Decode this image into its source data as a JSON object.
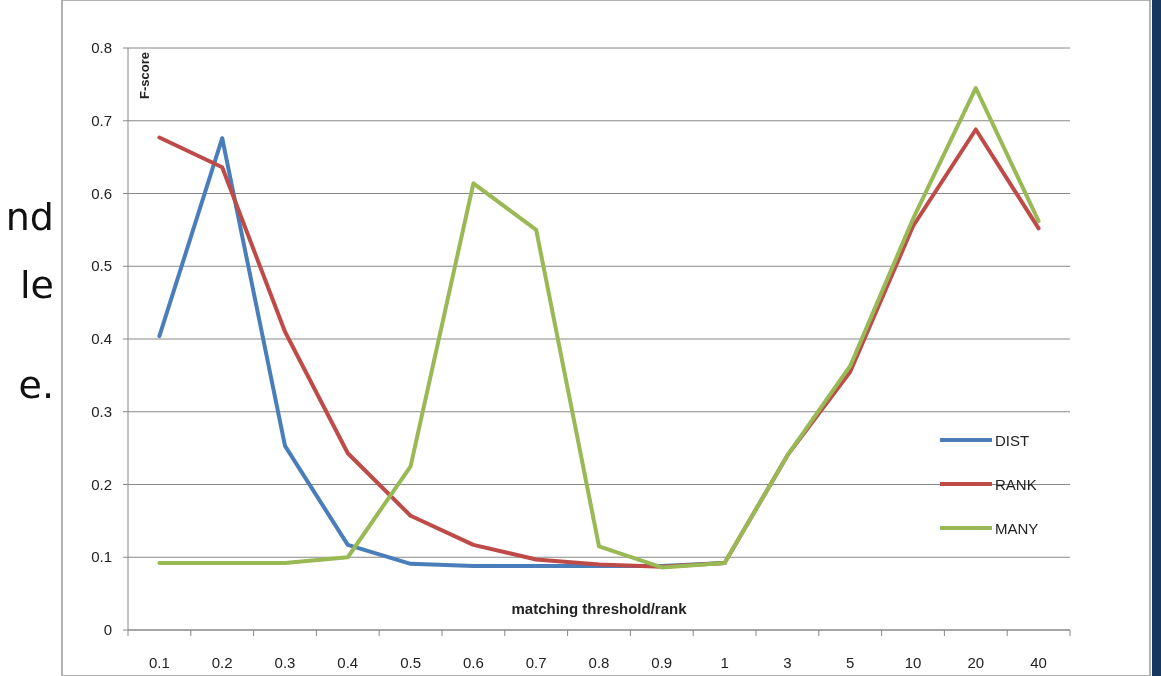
{
  "chart_data": {
    "type": "line",
    "ylabel": "F-score",
    "xlabel": "matching threshold/rank",
    "annotations": [
      "nd",
      "le",
      "e."
    ],
    "categories": [
      "0.1",
      "0.2",
      "0.3",
      "0.4",
      "0.5",
      "0.6",
      "0.7",
      "0.8",
      "0.9",
      "1",
      "3",
      "5",
      "10",
      "20",
      "40"
    ],
    "series": [
      {
        "name": "DIST",
        "color": "#4a7ebb",
        "values": [
          0.404,
          0.676,
          0.253,
          0.117,
          0.091,
          0.088,
          0.088,
          0.088,
          0.088,
          0.092,
          null,
          null,
          null,
          null,
          null
        ]
      },
      {
        "name": "RANK",
        "color": "#be4b48",
        "values": [
          0.677,
          0.636,
          0.41,
          0.243,
          0.157,
          0.117,
          0.097,
          0.09,
          0.087,
          0.092,
          0.24,
          0.355,
          0.555,
          0.688,
          0.552
        ]
      },
      {
        "name": "MANY",
        "color": "#98b954",
        "values": [
          0.092,
          0.092,
          0.092,
          0.1,
          0.225,
          0.614,
          0.55,
          0.115,
          0.086,
          0.092,
          0.24,
          0.363,
          0.565,
          0.745,
          0.562
        ]
      }
    ],
    "ylim": [
      0,
      0.8
    ],
    "yticks": [
      0,
      0.1,
      0.2,
      0.3,
      0.4,
      0.5,
      0.6,
      0.7,
      0.8
    ],
    "grid": "y",
    "legend": "right",
    "marker": "none",
    "line_style": "solid"
  }
}
